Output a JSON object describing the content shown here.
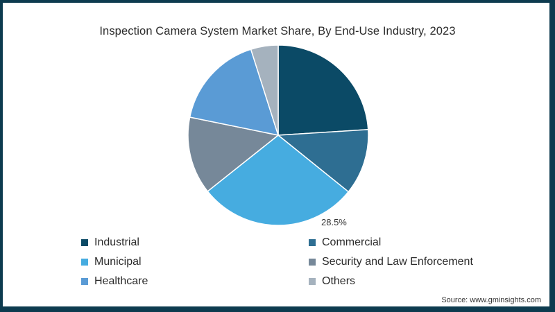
{
  "title": "Inspection Camera System Market Share, By End-Use Industry, 2023",
  "source": "Source: www.gminsights.com",
  "frame_color": "#0d3b4f",
  "chart_data": {
    "type": "pie",
    "title": "Inspection Camera System Market Share, By End-Use Industry, 2023",
    "categories": [
      "Industrial",
      "Commercial",
      "Municipal",
      "Security and Law Enforcement",
      "Healthcare",
      "Others"
    ],
    "values": [
      24.0,
      11.8,
      28.5,
      13.9,
      16.9,
      4.9
    ],
    "colors": [
      "#0b4a66",
      "#2e6e92",
      "#46ace0",
      "#768899",
      "#5a9bd5",
      "#a5b2be"
    ],
    "start_angle": 0,
    "direction": "clockwise",
    "data_labels": [
      {
        "category": "Municipal",
        "text": "28.5%"
      }
    ],
    "legend_position": "bottom"
  },
  "pie_label": "28.5%",
  "legend": [
    {
      "label": "Industrial",
      "color": "#0b4a66"
    },
    {
      "label": "Commercial",
      "color": "#2e6e92"
    },
    {
      "label": "Municipal",
      "color": "#46ace0"
    },
    {
      "label": "Security and Law Enforcement",
      "color": "#768899"
    },
    {
      "label": "Healthcare",
      "color": "#5a9bd5"
    },
    {
      "label": "Others",
      "color": "#a5b2be"
    }
  ]
}
